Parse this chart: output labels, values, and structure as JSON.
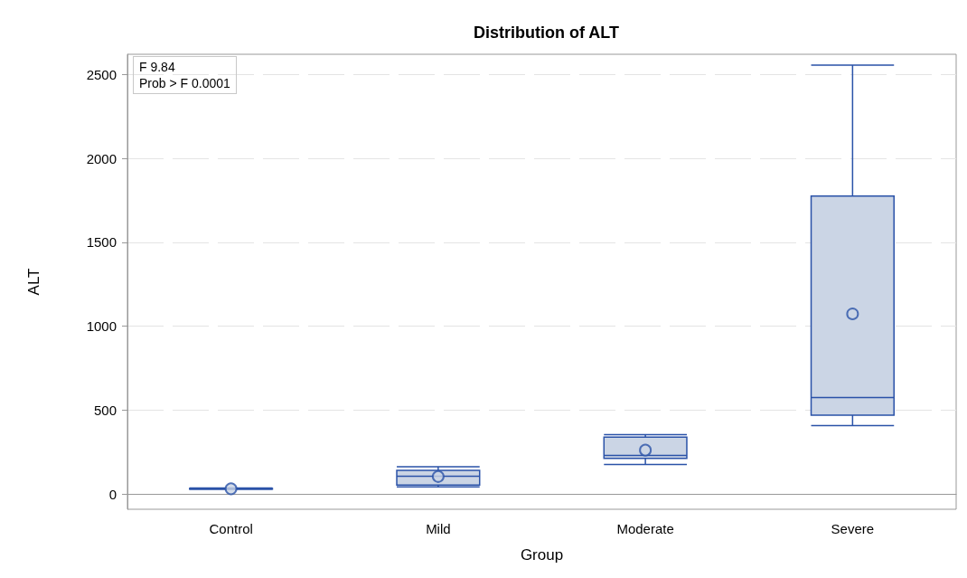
{
  "chart_data": {
    "type": "box",
    "title": "Distribution of ALT",
    "xlabel": "Group",
    "ylabel": "ALT",
    "categories": [
      "Control",
      "Mild",
      "Moderate",
      "Severe"
    ],
    "boxes": [
      {
        "low": 28,
        "q1": 30,
        "median": 32,
        "q3": 34,
        "high": 36,
        "mean": 32
      },
      {
        "low": 43,
        "q1": 54,
        "median": 107,
        "q3": 141,
        "high": 163,
        "mean": 105
      },
      {
        "low": 177,
        "q1": 213,
        "median": 230,
        "q3": 340,
        "high": 355,
        "mean": 262
      },
      {
        "low": 409,
        "q1": 470,
        "median": 575,
        "q3": 1776,
        "high": 2555,
        "mean": 1074
      }
    ],
    "color": "#2a52a8",
    "ylim": [
      -90,
      2620
    ],
    "yticks": [
      0,
      500,
      1000,
      1500,
      2000,
      2500
    ],
    "grid": "y",
    "annotations": [
      "F 9.84",
      "Prob > F 0.0001"
    ]
  }
}
